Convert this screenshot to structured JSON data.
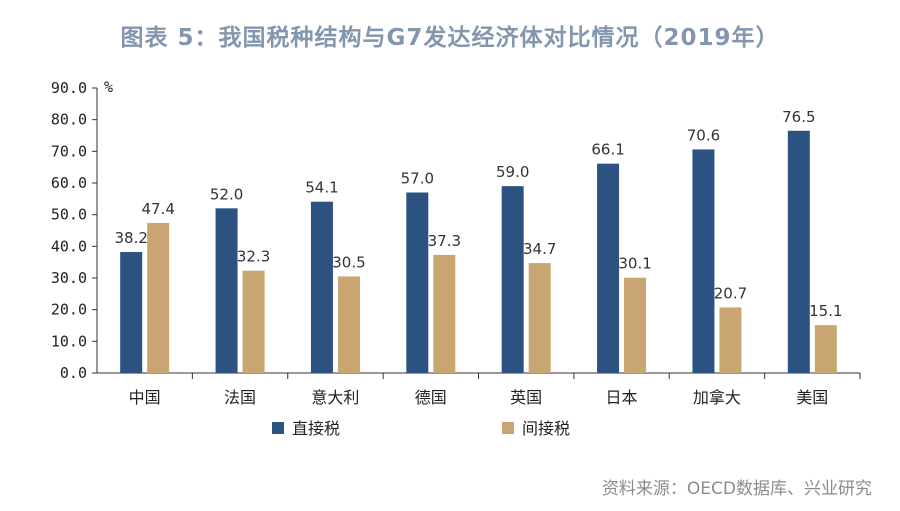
{
  "title": "图表 5：我国税种结构与G7发达经济体对比情况（2019年）",
  "source": "资料来源：OECD数据库、兴业研究",
  "chart_data": {
    "type": "bar",
    "title": "图表 5：我国税种结构与G7发达经济体对比情况（2019年）",
    "ylabel": "%",
    "xlabel": "",
    "ylim": [
      0,
      90
    ],
    "yticks": [
      "0.0",
      "10.0",
      "20.0",
      "30.0",
      "40.0",
      "50.0",
      "60.0",
      "70.0",
      "80.0",
      "90.0"
    ],
    "categories": [
      "中国",
      "法国",
      "意大利",
      "德国",
      "英国",
      "日本",
      "加拿大",
      "美国"
    ],
    "series": [
      {
        "name": "直接税",
        "color": "#2C5282",
        "values": [
          38.2,
          52.0,
          54.1,
          57.0,
          59.0,
          66.1,
          70.6,
          76.5
        ]
      },
      {
        "name": "间接税",
        "color": "#C8A571",
        "values": [
          47.4,
          32.3,
          30.5,
          37.3,
          34.7,
          30.1,
          20.7,
          15.1
        ]
      }
    ],
    "grid": false,
    "legend": "bottom-left"
  }
}
